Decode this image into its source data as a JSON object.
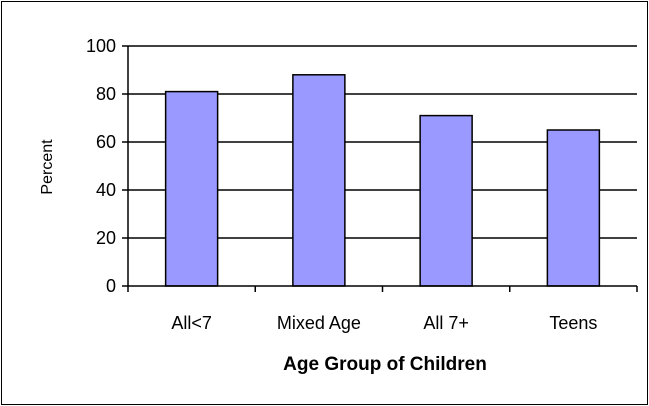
{
  "chart_data": {
    "type": "bar",
    "title": "",
    "xlabel": "Age Group of Children",
    "ylabel": "Percent",
    "categories": [
      "All<7",
      "Mixed Age",
      "All 7+",
      "Teens"
    ],
    "values": [
      81,
      88,
      71,
      65
    ],
    "ylim": [
      0,
      100
    ],
    "yticks": [
      0,
      20,
      40,
      60,
      80,
      100
    ],
    "grid": true,
    "legend": "none",
    "colors": {
      "bar": "#9999FF",
      "bar_edge": "#000000",
      "grid": "#000000"
    }
  }
}
